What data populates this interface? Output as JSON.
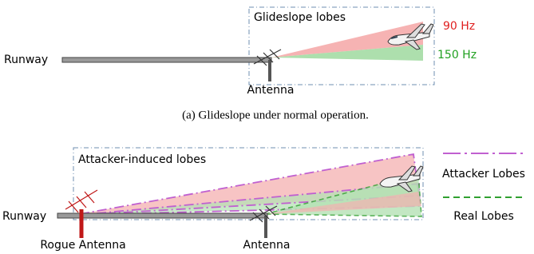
{
  "top": {
    "box_label": "Glideslope lobes",
    "lobe_90": "90 Hz",
    "lobe_150": "150 Hz",
    "runway": "Runway",
    "antenna": "Antenna",
    "caption": "(a) Glideslope under normal operation."
  },
  "bottom": {
    "box_label": "Attacker-induced lobes",
    "runway": "Runway",
    "rogue_antenna": "Rogue Antenna",
    "antenna": "Antenna",
    "legend": {
      "attacker": "Attacker Lobes",
      "real": "Real Lobes"
    }
  }
}
